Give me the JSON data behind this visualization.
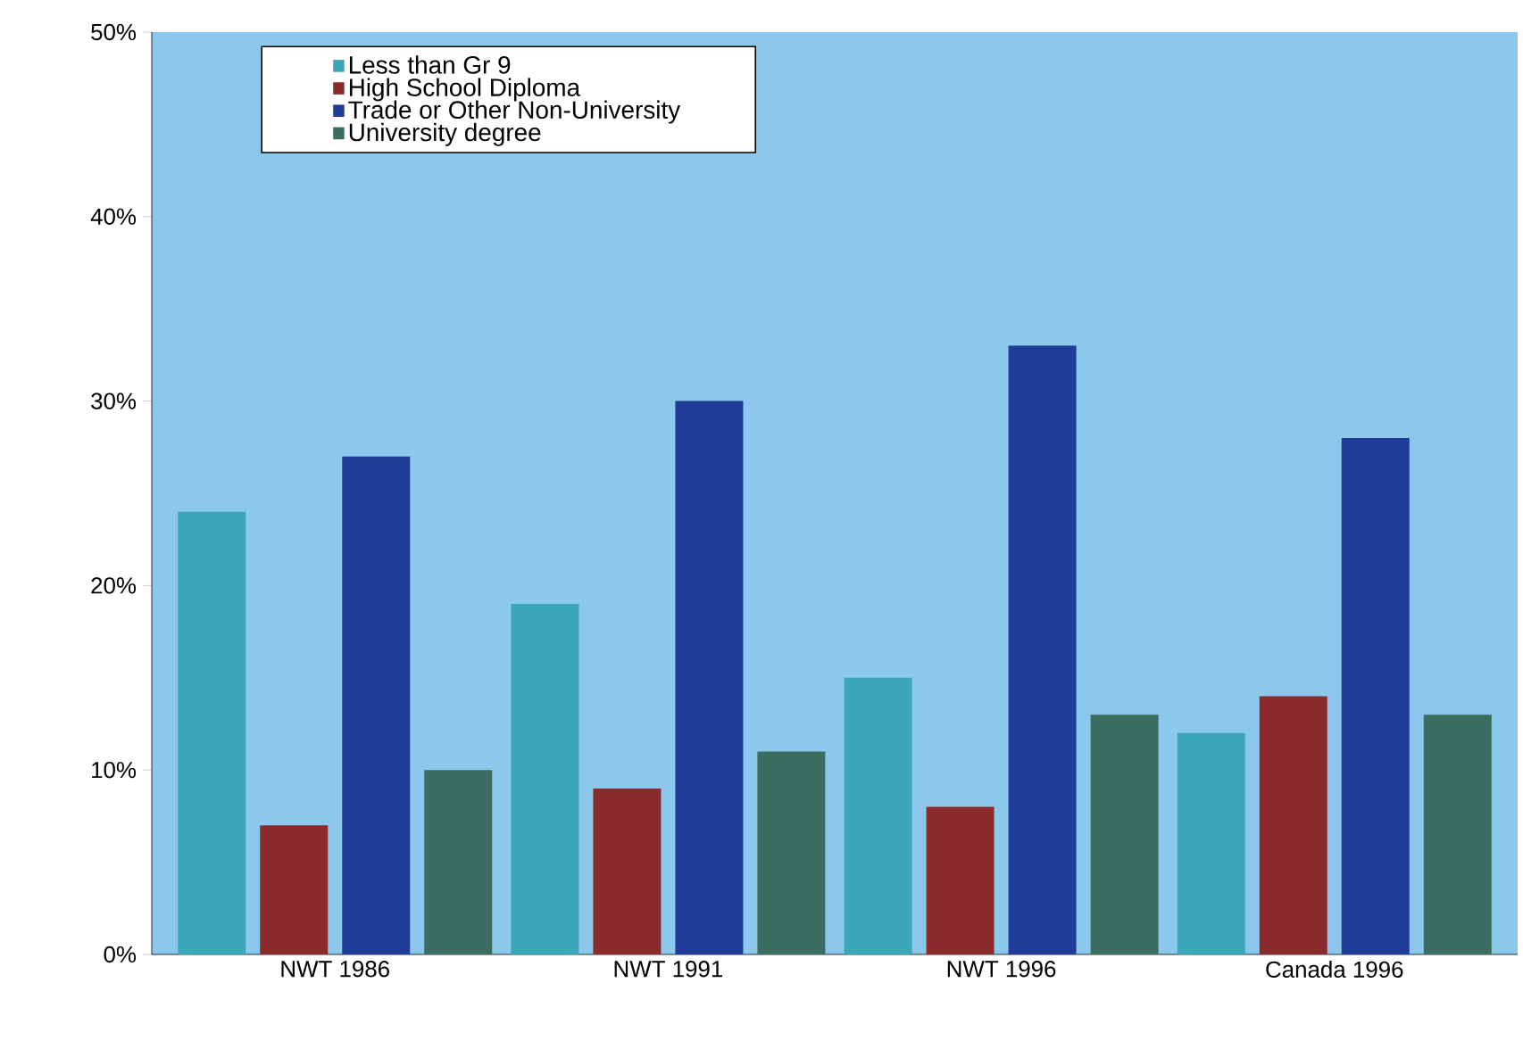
{
  "chart_data": {
    "type": "bar",
    "categories": [
      "NWT 1986",
      "NWT 1991",
      "NWT 1996",
      "Canada 1996"
    ],
    "series": [
      {
        "name": "Less than Gr 9",
        "color": "#3aa6b8",
        "values": [
          24,
          19,
          15,
          12
        ]
      },
      {
        "name": "High School Diploma",
        "color": "#8a2c2c",
        "values": [
          7,
          9,
          8,
          14
        ]
      },
      {
        "name": "Trade or Other Non-University",
        "color": "#1e3c98",
        "values": [
          27,
          30,
          33,
          28
        ]
      },
      {
        "name": "University degree",
        "color": "#3b6e60",
        "values": [
          10,
          11,
          13,
          13
        ]
      }
    ],
    "ylim": [
      0,
      50
    ],
    "yticks": [
      {
        "value": 0,
        "label": "0%"
      },
      {
        "value": 10,
        "label": "10%"
      },
      {
        "value": 20,
        "label": "20%"
      },
      {
        "value": 30,
        "label": "30%"
      },
      {
        "value": 40,
        "label": "40%"
      },
      {
        "value": 50,
        "label": "50%"
      }
    ],
    "grid": false,
    "legend": "top"
  }
}
